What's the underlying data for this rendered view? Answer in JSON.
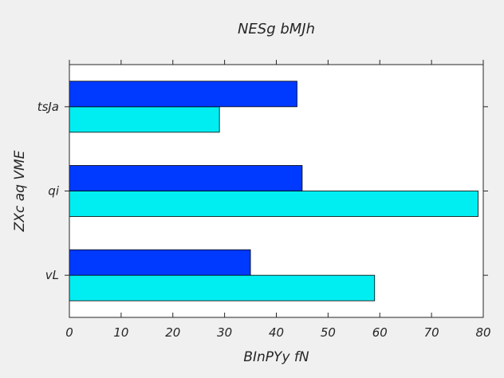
{
  "chart_data": {
    "type": "bar",
    "orientation": "horizontal",
    "title": "NESg bMJh",
    "xlabel": "BInPYy fN",
    "ylabel": "ZXc aq VME",
    "categories": [
      "vL",
      "qi",
      "tsJa"
    ],
    "series": [
      {
        "color": "#00eef2",
        "values": [
          59,
          79,
          29
        ]
      },
      {
        "color": "#0039ff",
        "values": [
          35,
          45,
          44
        ]
      }
    ],
    "xlim": [
      0,
      80
    ],
    "xticks": [
      0,
      10,
      20,
      30,
      40,
      50,
      60,
      70,
      80
    ],
    "grid": false,
    "legend": "none"
  },
  "colors": {
    "figure_background": "#f0f0f0",
    "plot_background": "#ffffff",
    "axis": "#262626",
    "bar_edge": "#000000"
  }
}
